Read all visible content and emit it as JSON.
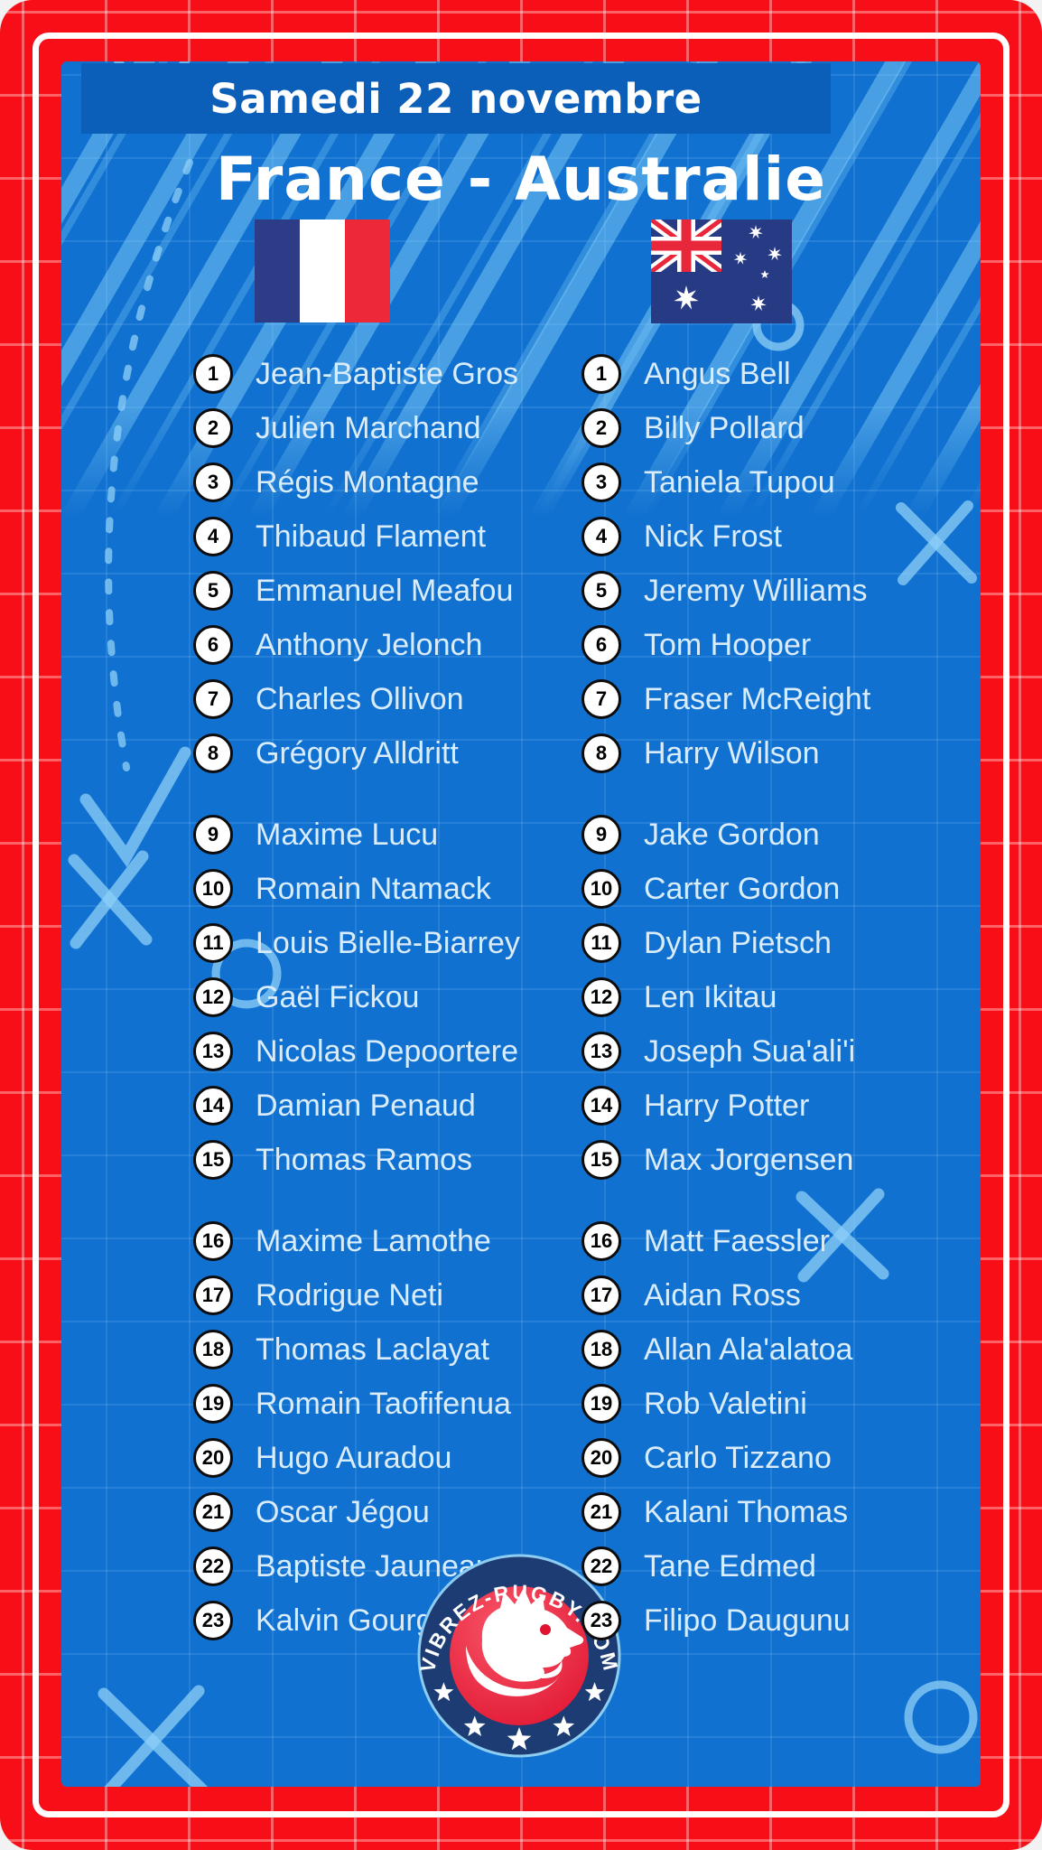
{
  "header": {
    "date": "Samedi 22 novembre",
    "title": "France - Australie"
  },
  "flags": {
    "home": "drapeau-france",
    "away": "drapeau-australie"
  },
  "rosters": {
    "france": [
      {
        "n": "1",
        "name": "Jean-Baptiste Gros"
      },
      {
        "n": "2",
        "name": "Julien Marchand"
      },
      {
        "n": "3",
        "name": "Régis Montagne"
      },
      {
        "n": "4",
        "name": "Thibaud Flament"
      },
      {
        "n": "5",
        "name": "Emmanuel Meafou"
      },
      {
        "n": "6",
        "name": "Anthony Jelonch"
      },
      {
        "n": "7",
        "name": "Charles Ollivon"
      },
      {
        "n": "8",
        "name": "Grégory Alldritt"
      },
      {
        "n": "9",
        "name": "Maxime Lucu"
      },
      {
        "n": "10",
        "name": "Romain Ntamack"
      },
      {
        "n": "11",
        "name": "Louis Bielle-Biarrey"
      },
      {
        "n": "12",
        "name": "Gaël Fickou"
      },
      {
        "n": "13",
        "name": "Nicolas Depoortere"
      },
      {
        "n": "14",
        "name": "Damian Penaud"
      },
      {
        "n": "15",
        "name": "Thomas Ramos"
      },
      {
        "n": "16",
        "name": "Maxime Lamothe"
      },
      {
        "n": "17",
        "name": "Rodrigue Neti"
      },
      {
        "n": "18",
        "name": "Thomas Laclayat"
      },
      {
        "n": "19",
        "name": "Romain Taofifenua"
      },
      {
        "n": "20",
        "name": "Hugo Auradou"
      },
      {
        "n": "21",
        "name": "Oscar Jégou"
      },
      {
        "n": "22",
        "name": "Baptiste Jauneau"
      },
      {
        "n": "23",
        "name": "Kalvin Gourgues"
      }
    ],
    "australie": [
      {
        "n": "1",
        "name": "Angus Bell"
      },
      {
        "n": "2",
        "name": "Billy Pollard"
      },
      {
        "n": "3",
        "name": "Taniela Tupou"
      },
      {
        "n": "4",
        "name": "Nick Frost"
      },
      {
        "n": "5",
        "name": "Jeremy Williams"
      },
      {
        "n": "6",
        "name": "Tom Hooper"
      },
      {
        "n": "7",
        "name": "Fraser McReight"
      },
      {
        "n": "8",
        "name": "Harry Wilson"
      },
      {
        "n": "9",
        "name": "Jake Gordon"
      },
      {
        "n": "10",
        "name": "Carter Gordon"
      },
      {
        "n": "11",
        "name": "Dylan Pietsch"
      },
      {
        "n": "12",
        "name": "Len Ikitau"
      },
      {
        "n": "13",
        "name": "Joseph Sua'ali'i"
      },
      {
        "n": "14",
        "name": "Harry Potter"
      },
      {
        "n": "15",
        "name": "Max Jorgensen"
      },
      {
        "n": "16",
        "name": "Matt Faessler"
      },
      {
        "n": "17",
        "name": "Aidan Ross"
      },
      {
        "n": "18",
        "name": "Allan Ala'alatoa"
      },
      {
        "n": "19",
        "name": "Rob Valetini"
      },
      {
        "n": "20",
        "name": "Carlo Tizzano"
      },
      {
        "n": "21",
        "name": "Kalani Thomas"
      },
      {
        "n": "22",
        "name": "Tane Edmed"
      },
      {
        "n": "23",
        "name": "Filipo Daugunu"
      }
    ]
  },
  "logo": {
    "arc_text": "VIBREZ-RUGBY.COM",
    "star_count": 5
  },
  "colors": {
    "frame_red": "#f80e16",
    "panel_blue": "#1171d0",
    "band_blue": "#0b5fb9",
    "stripe_blue": "#82cdf8",
    "name_text": "#d9ecfb",
    "badge_border": "#0c0c0c",
    "logo_navy": "#1d3c74",
    "logo_red": "#e01430",
    "flag_france_blue": "#2d3c86",
    "flag_france_red": "#ed2939",
    "flag_australia_navy": "#273a84"
  }
}
